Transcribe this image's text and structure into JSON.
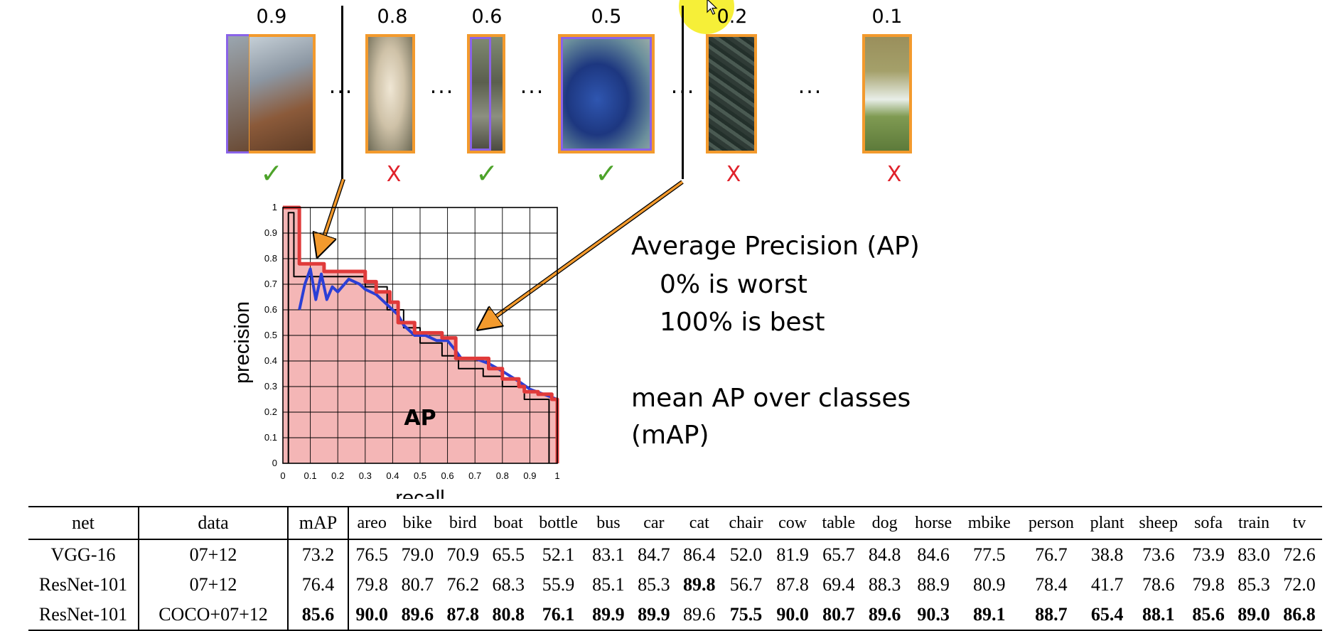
{
  "detections": [
    {
      "score": "0.9",
      "verdict": "correct",
      "mark": "✓"
    },
    {
      "score": "0.8",
      "verdict": "wrong",
      "mark": "X"
    },
    {
      "score": "0.6",
      "verdict": "correct",
      "mark": "✓"
    },
    {
      "score": "0.5",
      "verdict": "correct",
      "mark": "✓"
    },
    {
      "score": "0.2",
      "verdict": "wrong",
      "mark": "X"
    },
    {
      "score": "0.1",
      "verdict": "wrong",
      "mark": "X"
    }
  ],
  "ellipsis": "...",
  "colors": {
    "pred_box": "#f39a2d",
    "gt_box": "#8a63e8",
    "correct": "#4da32a",
    "wrong": "#e0222b",
    "interp_curve": "#e03a3a",
    "raw_curve": "#2b3fd6",
    "area_fill": "#f4b6b6",
    "arrow": "#f39a2d"
  },
  "notes": {
    "ap_title": "Average Precision (AP)",
    "worst": "0% is worst",
    "best": "100% is best",
    "map_line1": "mean AP over classes",
    "map_line2": "(mAP)"
  },
  "chart_data": {
    "type": "line",
    "xlabel": "recall",
    "ylabel": "precision",
    "xlim": [
      0,
      1
    ],
    "ylim": [
      0,
      1
    ],
    "x_ticks": [
      "0",
      "0.1",
      "0.2",
      "0.3",
      "0.4",
      "0.5",
      "0.6",
      "0.7",
      "0.8",
      "0.9",
      "1"
    ],
    "y_ticks": [
      "0",
      "0.1",
      "0.2",
      "0.3",
      "0.4",
      "0.5",
      "0.6",
      "0.7",
      "0.8",
      "0.9",
      "1"
    ],
    "grid": true,
    "area_label": "AP",
    "series": [
      {
        "style": "interpolated",
        "color": "#e03a3a",
        "x": [
          0.0,
          0.06,
          0.06,
          0.15,
          0.15,
          0.3,
          0.3,
          0.34,
          0.34,
          0.39,
          0.39,
          0.42,
          0.42,
          0.48,
          0.48,
          0.58,
          0.58,
          0.63,
          0.63,
          0.65,
          0.65,
          0.75,
          0.75,
          0.8,
          0.8,
          0.86,
          0.86,
          0.88,
          0.88,
          0.93,
          0.93,
          0.98,
          0.98,
          1.0,
          1.0
        ],
        "y": [
          1.0,
          1.0,
          0.78,
          0.78,
          0.75,
          0.75,
          0.71,
          0.71,
          0.67,
          0.67,
          0.63,
          0.63,
          0.55,
          0.55,
          0.51,
          0.51,
          0.49,
          0.49,
          0.41,
          0.41,
          0.41,
          0.41,
          0.37,
          0.37,
          0.33,
          0.33,
          0.3,
          0.3,
          0.28,
          0.28,
          0.27,
          0.27,
          0.25,
          0.25,
          0.0
        ]
      },
      {
        "style": "raw",
        "color": "#2b3fd6",
        "x": [
          0.06,
          0.08,
          0.1,
          0.12,
          0.14,
          0.16,
          0.18,
          0.2,
          0.24,
          0.28,
          0.3,
          0.34,
          0.38,
          0.42,
          0.44,
          0.48,
          0.52,
          0.56,
          0.6,
          0.63,
          0.65,
          0.7,
          0.75,
          0.8,
          0.86,
          0.9,
          0.95,
          1.0
        ],
        "y": [
          0.6,
          0.7,
          0.76,
          0.64,
          0.74,
          0.64,
          0.69,
          0.67,
          0.72,
          0.7,
          0.68,
          0.66,
          0.62,
          0.58,
          0.54,
          0.5,
          0.5,
          0.48,
          0.48,
          0.44,
          0.41,
          0.41,
          0.39,
          0.36,
          0.32,
          0.29,
          0.27,
          0.25
        ]
      },
      {
        "style": "outline",
        "color": "#000000",
        "x": [
          0.02,
          0.02,
          0.04,
          0.04,
          0.06,
          0.06,
          0.3,
          0.3,
          0.38,
          0.38,
          0.44,
          0.44,
          0.5,
          0.5,
          0.58,
          0.58,
          0.64,
          0.64,
          0.73,
          0.73,
          0.8,
          0.8,
          0.88,
          0.88,
          0.97,
          0.97
        ],
        "y": [
          0.0,
          0.98,
          0.98,
          0.73,
          0.73,
          0.73,
          0.73,
          0.69,
          0.69,
          0.6,
          0.6,
          0.53,
          0.53,
          0.47,
          0.47,
          0.42,
          0.42,
          0.37,
          0.37,
          0.34,
          0.34,
          0.3,
          0.3,
          0.25,
          0.25,
          0.0
        ]
      }
    ]
  },
  "results_table": {
    "headers": [
      "net",
      "data",
      "mAP",
      "areo",
      "bike",
      "bird",
      "boat",
      "bottle",
      "bus",
      "car",
      "cat",
      "chair",
      "cow",
      "table",
      "dog",
      "horse",
      "mbike",
      "person",
      "plant",
      "sheep",
      "sofa",
      "train",
      "tv"
    ],
    "rows": [
      {
        "net": "VGG-16",
        "data": "07+12",
        "values": [
          "73.2",
          "76.5",
          "79.0",
          "70.9",
          "65.5",
          "52.1",
          "83.1",
          "84.7",
          "86.4",
          "52.0",
          "81.9",
          "65.7",
          "84.8",
          "84.6",
          "77.5",
          "76.7",
          "38.8",
          "73.6",
          "73.9",
          "83.0",
          "72.6"
        ],
        "bold": [
          false,
          false,
          false,
          false,
          false,
          false,
          false,
          false,
          false,
          false,
          false,
          false,
          false,
          false,
          false,
          false,
          false,
          false,
          false,
          false,
          false
        ]
      },
      {
        "net": "ResNet-101",
        "data": "07+12",
        "values": [
          "76.4",
          "79.8",
          "80.7",
          "76.2",
          "68.3",
          "55.9",
          "85.1",
          "85.3",
          "89.8",
          "56.7",
          "87.8",
          "69.4",
          "88.3",
          "88.9",
          "80.9",
          "78.4",
          "41.7",
          "78.6",
          "79.8",
          "85.3",
          "72.0"
        ],
        "bold": [
          false,
          false,
          false,
          false,
          false,
          false,
          false,
          false,
          true,
          false,
          false,
          false,
          false,
          false,
          false,
          false,
          false,
          false,
          false,
          false,
          false
        ]
      },
      {
        "net": "ResNet-101",
        "data": "COCO+07+12",
        "values": [
          "85.6",
          "90.0",
          "89.6",
          "87.8",
          "80.8",
          "76.1",
          "89.9",
          "89.9",
          "89.6",
          "75.5",
          "90.0",
          "80.7",
          "89.6",
          "90.3",
          "89.1",
          "88.7",
          "65.4",
          "88.1",
          "85.6",
          "89.0",
          "86.8"
        ],
        "bold": [
          true,
          true,
          true,
          true,
          true,
          true,
          true,
          true,
          false,
          true,
          true,
          true,
          true,
          true,
          true,
          true,
          true,
          true,
          true,
          true,
          true
        ]
      }
    ]
  }
}
